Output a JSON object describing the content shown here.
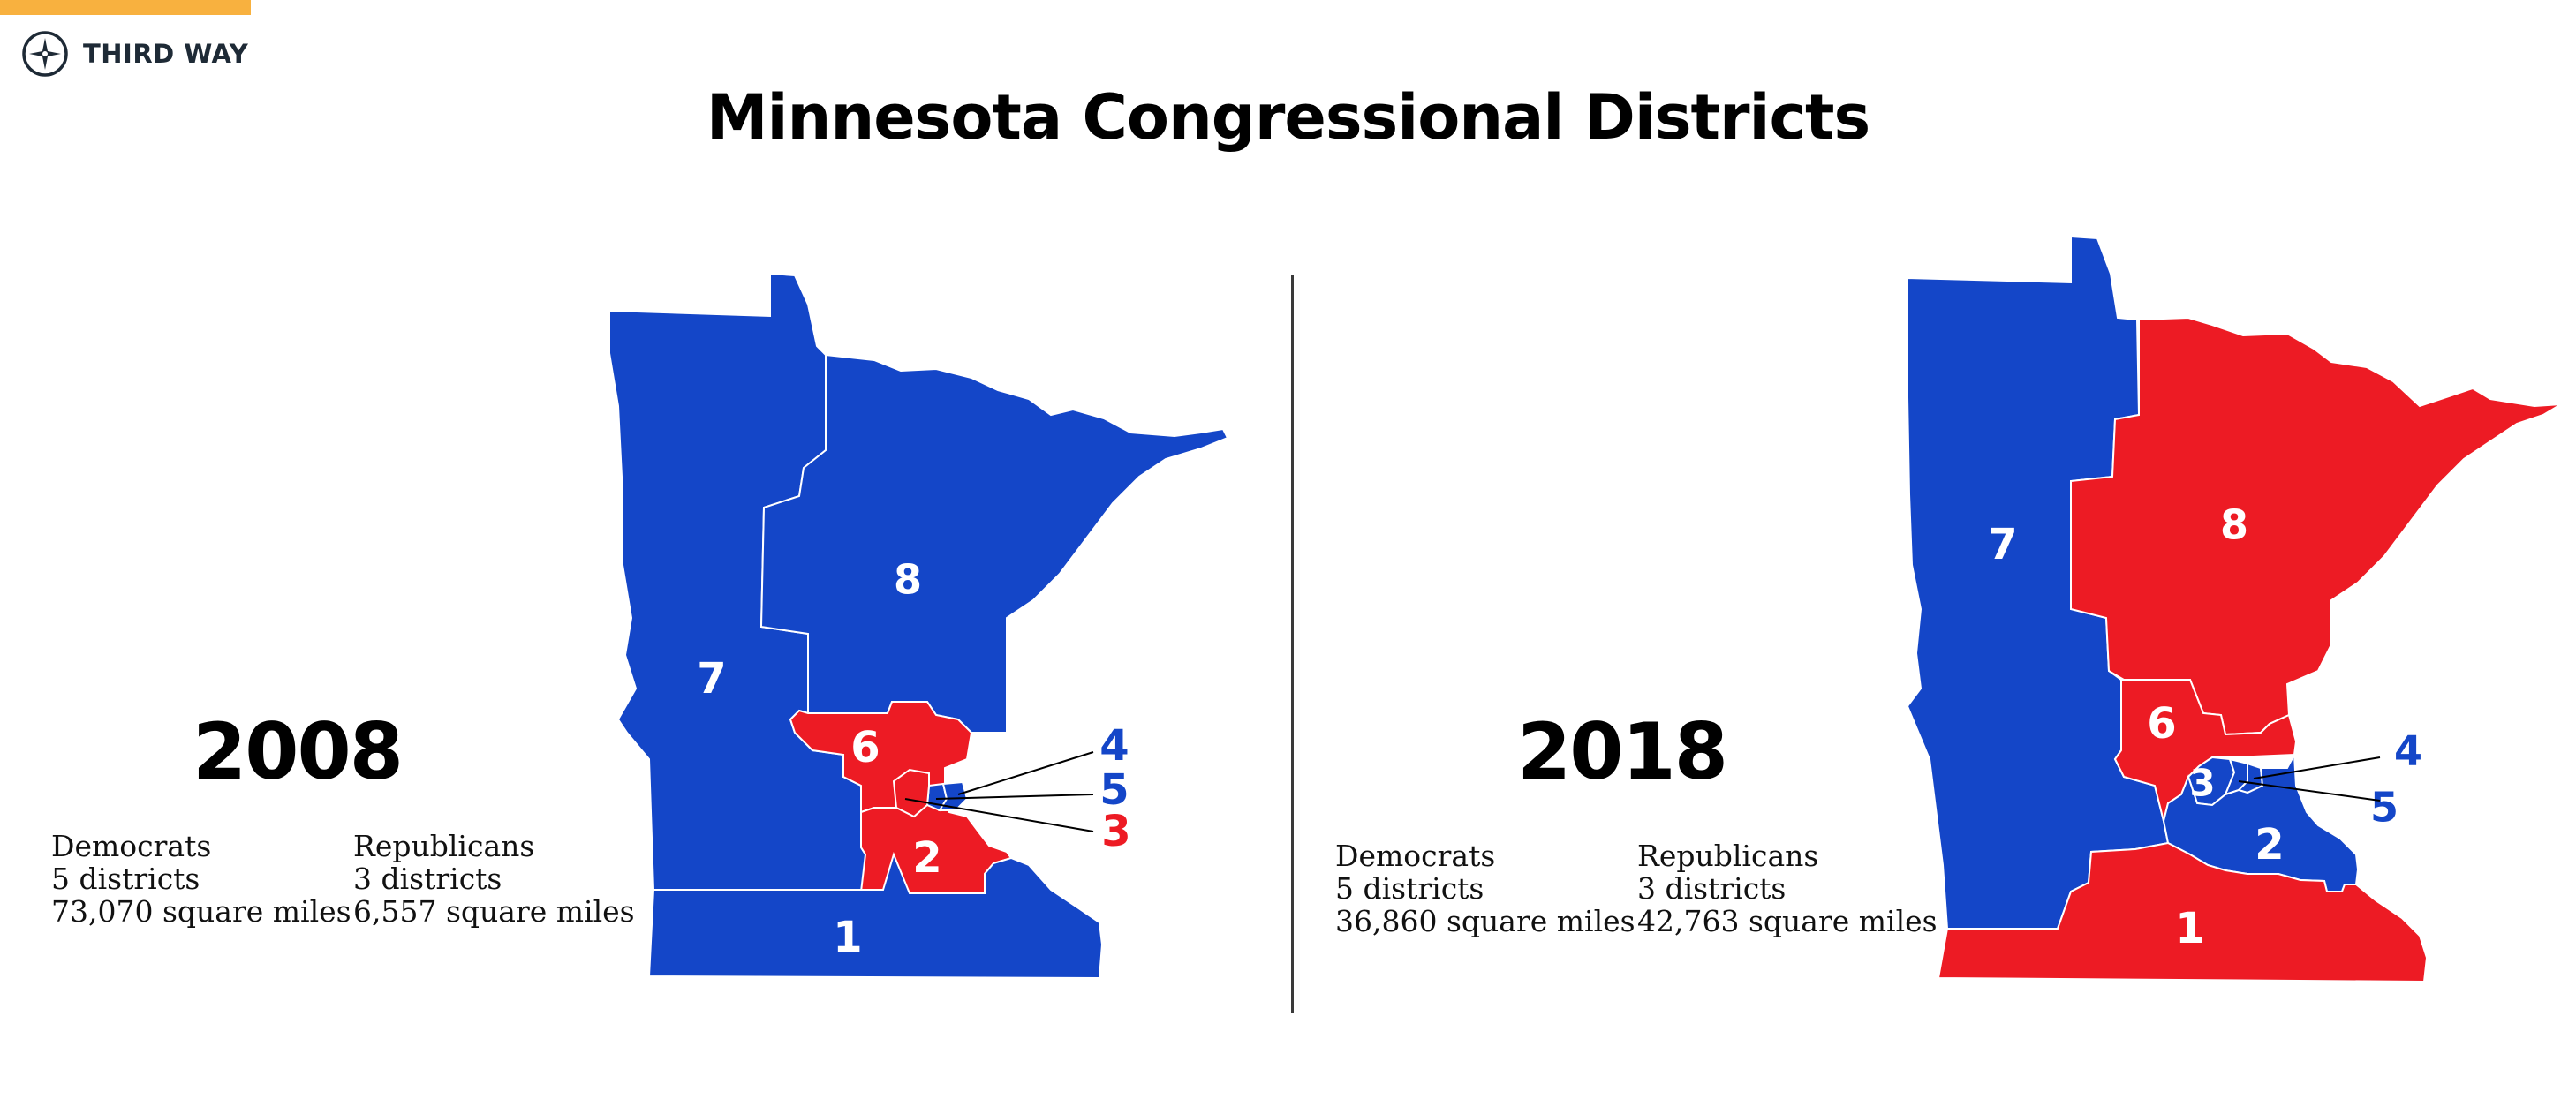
{
  "brand": {
    "name": "THIRD WAY",
    "logo_icon": "compass-star-icon"
  },
  "title": "Minnesota Congressional Districts",
  "colors": {
    "democrat": "#1446c8",
    "republican": "#ed1b24",
    "accent": "#f8b13f"
  },
  "maps": [
    {
      "year": "2008",
      "democrats": {
        "label": "Democrats",
        "districts": "5 districts",
        "area": "73,070 square miles"
      },
      "republicans": {
        "label": "Republicans",
        "districts": "3 districts",
        "area": "6,557 square miles"
      },
      "districts": [
        {
          "number": "1",
          "party": "democrat"
        },
        {
          "number": "2",
          "party": "republican"
        },
        {
          "number": "3",
          "party": "republican"
        },
        {
          "number": "4",
          "party": "democrat"
        },
        {
          "number": "5",
          "party": "democrat"
        },
        {
          "number": "6",
          "party": "republican"
        },
        {
          "number": "7",
          "party": "democrat"
        },
        {
          "number": "8",
          "party": "democrat"
        }
      ]
    },
    {
      "year": "2018",
      "democrats": {
        "label": "Democrats",
        "districts": "5 districts",
        "area": "36,860 square miles"
      },
      "republicans": {
        "label": "Republicans",
        "districts": "3 districts",
        "area": "42,763 square miles"
      },
      "districts": [
        {
          "number": "1",
          "party": "republican"
        },
        {
          "number": "2",
          "party": "democrat"
        },
        {
          "number": "3",
          "party": "democrat"
        },
        {
          "number": "4",
          "party": "democrat"
        },
        {
          "number": "5",
          "party": "democrat"
        },
        {
          "number": "6",
          "party": "republican"
        },
        {
          "number": "7",
          "party": "democrat"
        },
        {
          "number": "8",
          "party": "republican"
        }
      ]
    }
  ]
}
